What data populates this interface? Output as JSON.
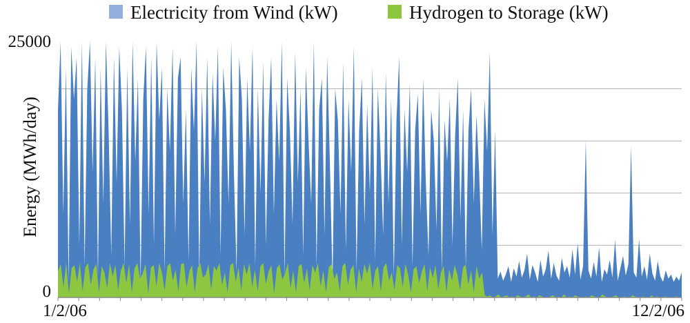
{
  "chart_data": {
    "type": "area",
    "title": "",
    "xlabel": "",
    "ylabel": "Energy (MWh/day)",
    "ylim": [
      0,
      25000
    ],
    "y_ticks_labeled": [
      0,
      25000
    ],
    "y_gridlines": [
      5000,
      10000,
      15000,
      20000,
      25000
    ],
    "x_tick_labels": [
      "1/2/06",
      "12/2/06"
    ],
    "x_range": [
      "1/2/06",
      "12/2/06"
    ],
    "grid": true,
    "legend_position": "top",
    "series": [
      {
        "name": "Electricity from Wind (kW)",
        "color": "#4a7fc1",
        "legend_color": "#92aedc",
        "values": [
          18000,
          24500,
          8000,
          22000,
          1500,
          24000,
          19000,
          23000,
          5000,
          24500,
          3000,
          20000,
          24500,
          12000,
          23000,
          2000,
          22000,
          9000,
          24500,
          16000,
          4000,
          23000,
          11000,
          24000,
          18000,
          3000,
          22000,
          7000,
          24500,
          13000,
          21000,
          1500,
          19000,
          24000,
          8000,
          23000,
          5000,
          24500,
          17000,
          22000,
          2500,
          20000,
          14000,
          24000,
          6000,
          21000,
          23000,
          9000,
          18000,
          3500,
          22000,
          16000,
          24500,
          2000,
          20000,
          11000,
          23000,
          7000,
          21500,
          15000,
          24000,
          4000,
          22000,
          18000,
          9000,
          24500,
          12000,
          2500,
          23000,
          19000,
          6000,
          21000,
          14000,
          24000,
          3000,
          20000,
          10000,
          22500,
          5000,
          17000,
          23000,
          8000,
          19000,
          13000,
          24500,
          2000,
          21000,
          16000,
          7000,
          23500,
          11000,
          20000,
          4000,
          22000,
          15000,
          9000,
          24500,
          3000,
          18000,
          21000,
          6000,
          23000,
          13000,
          1500,
          20000,
          17000,
          8000,
          22500,
          4500,
          19000,
          12000,
          24000,
          2500,
          16000,
          21000,
          7000,
          18500,
          10000,
          22000,
          3500,
          20000,
          14000,
          6000,
          21500,
          9000,
          19000,
          2000,
          17000,
          23000,
          5000,
          18000,
          12000,
          20500,
          3000,
          16000,
          19500,
          8000,
          21000,
          11000,
          4000,
          18000,
          15000,
          6500,
          20000,
          2500,
          17000,
          13000,
          19000,
          5000,
          15500,
          21000,
          7500,
          18000,
          3000,
          16000,
          20000,
          9000,
          17500,
          12000,
          4500,
          19000,
          14000,
          23500,
          6000,
          16000,
          1800,
          2500,
          1600,
          2200,
          3000,
          1500,
          2800,
          2000,
          3500,
          1900,
          2600,
          4200,
          1700,
          3100,
          2400,
          1500,
          3600,
          2000,
          2700,
          4500,
          1800,
          3300,
          2100,
          1600,
          3800,
          2400,
          3000,
          1900,
          4600,
          2200,
          5200,
          1700,
          3000,
          15000,
          2600,
          1800,
          3400,
          2000,
          4800,
          1500,
          2700,
          2200,
          3600,
          1900,
          5500,
          1600,
          2800,
          4000,
          2100,
          3200,
          14500,
          2400,
          1900,
          5600,
          2000,
          3000,
          1700,
          4200,
          2300,
          1600,
          3500,
          2000,
          1500,
          2600,
          1800,
          2200,
          1500,
          2000,
          1600,
          2400
        ]
      },
      {
        "name": "Hydrogen to Storage (kW)",
        "color": "#8dc63f",
        "legend_color": "#8dc63f",
        "values": [
          2500,
          3200,
          1000,
          3300,
          400,
          2800,
          3100,
          1500,
          3300,
          600,
          2900,
          3300,
          1200,
          2700,
          3200,
          500,
          3000,
          2400,
          900,
          3300,
          2000,
          3100,
          700,
          2600,
          3300,
          1400,
          3200,
          500,
          2800,
          3300,
          1800,
          2300,
          3200,
          400,
          2900,
          3100,
          1100,
          3300,
          2400,
          700,
          3000,
          3300,
          1600,
          2700,
          600,
          3200,
          3300,
          1000,
          2500,
          3100,
          500,
          2800,
          3300,
          1900,
          2200,
          3200,
          800,
          3000,
          2600,
          3300,
          1200,
          2400,
          500,
          3100,
          3300,
          1500,
          2900,
          700,
          3200,
          2200,
          3300,
          1000,
          2700,
          600,
          3000,
          3300,
          1300,
          2500,
          3100,
          400,
          2800,
          3200,
          1700,
          2300,
          3300,
          900,
          2600,
          500,
          3000,
          3200,
          1400,
          2800,
          700,
          3100,
          2400,
          3300,
          1100,
          2600,
          500,
          2900,
          3200,
          1800,
          2400,
          600,
          3000,
          3300,
          1200,
          2700,
          3100,
          500,
          2800,
          1500,
          3200,
          2300,
          3300,
          800,
          2600,
          3000,
          600,
          2900,
          3300,
          1600,
          2400,
          700,
          3100,
          2800,
          1000,
          3200,
          2200,
          500,
          2700,
          3000,
          1400,
          2500,
          3200,
          600,
          2900,
          1900,
          3100,
          800,
          2400,
          3000,
          500,
          2700,
          1600,
          3100,
          2200,
          700,
          2800,
          3200,
          1200,
          2600,
          500,
          3000,
          1800,
          2400,
          200,
          100,
          200,
          0,
          100,
          300,
          0,
          100,
          200,
          0,
          100,
          0,
          200,
          100,
          0,
          100,
          300,
          0,
          100,
          0,
          200,
          100,
          0,
          0,
          100,
          200,
          0,
          100,
          0,
          300,
          0,
          100,
          0,
          200,
          100,
          0,
          0,
          100,
          0,
          200,
          100,
          0,
          0,
          300,
          100,
          0,
          0,
          100,
          200,
          0,
          0,
          100,
          0,
          0,
          200,
          100,
          0,
          0,
          100,
          0,
          0,
          200,
          0,
          100,
          0,
          0,
          100,
          0,
          0,
          0,
          100,
          0,
          0
        ]
      }
    ]
  }
}
